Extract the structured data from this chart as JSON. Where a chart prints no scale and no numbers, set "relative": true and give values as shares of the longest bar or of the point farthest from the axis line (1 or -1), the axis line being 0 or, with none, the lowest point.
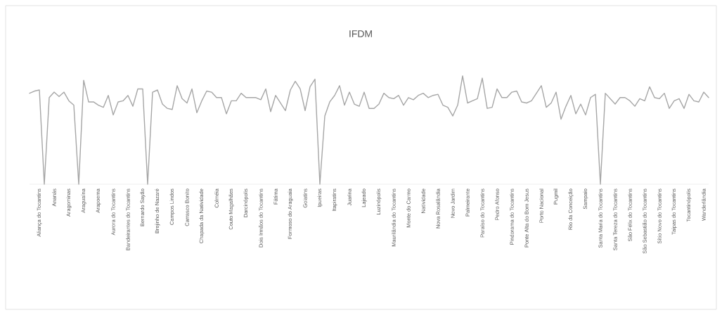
{
  "chart_data": {
    "type": "line",
    "title": "IFDM",
    "relative": true,
    "color": "#a6a6a6",
    "categories": [
      null,
      null,
      "Aliança do Tocantins",
      null,
      null,
      "Ananás",
      null,
      null,
      "Aragominas",
      null,
      null,
      "Araguaína",
      null,
      null,
      "Arapoema",
      null,
      null,
      "Aurora do Tocantins",
      null,
      null,
      "Bandeirantes do Tocantins",
      null,
      null,
      "Bernardo Sayão",
      null,
      null,
      "Brejinho de Nazaré",
      null,
      null,
      "Campos Lindos",
      null,
      null,
      "Carrasco Bonito",
      null,
      null,
      "Chapada da Natividade",
      null,
      null,
      "Colméia",
      null,
      null,
      "Couto Magalhães",
      null,
      null,
      "Darcinópolis",
      null,
      null,
      "Dois Irmãos do Tocantins",
      null,
      null,
      "Fátima",
      null,
      null,
      "Formoso do Araguaia",
      null,
      null,
      "Goiatins",
      null,
      null,
      "Ipueiras",
      null,
      null,
      "Itapiratins",
      null,
      null,
      "Juarina",
      null,
      null,
      "Lajeado",
      null,
      null,
      "Luzinópolis",
      null,
      null,
      "Maurilândia do Tocantins",
      null,
      null,
      "Monte do Carmo",
      null,
      null,
      "Natividade",
      null,
      null,
      "Nova Rosalândia",
      null,
      null,
      "Novo Jardim",
      null,
      null,
      "Palmeirante",
      null,
      null,
      "Paraíso do Tocantins",
      null,
      null,
      "Pedro Afonso",
      null,
      null,
      "Pindorama do Tocantins",
      null,
      null,
      "Ponte Alta do Bom Jesus",
      null,
      null,
      "Porto Nacional",
      null,
      null,
      "Pugmil",
      null,
      null,
      "Rio da Conceição",
      null,
      null,
      "Sampaio",
      null,
      null,
      "Santa Maria do Tocantins",
      null,
      null,
      "Santa Tereza do Tocantins",
      null,
      null,
      "São Félix do Tocantins",
      null,
      null,
      "São Sebastião do Tocantins",
      null,
      null,
      "Sítio Novo do Tocantins",
      null,
      null,
      "Taipas do Tocantins",
      null,
      null,
      "Tocantinópolis",
      null,
      null,
      "Wanderlândia",
      null
    ],
    "values": [
      0.84,
      0.86,
      0.87,
      0,
      0.8,
      0.85,
      0.81,
      0.85,
      0.77,
      0.73,
      0,
      0.96,
      0.76,
      0.76,
      0.73,
      0.71,
      0.82,
      0.64,
      0.76,
      0.77,
      0.82,
      0.72,
      0.88,
      0.88,
      0,
      0.85,
      0.87,
      0.74,
      0.7,
      0.69,
      0.91,
      0.79,
      0.75,
      0.88,
      0.66,
      0.77,
      0.86,
      0.85,
      0.8,
      0.8,
      0.65,
      0.77,
      0.77,
      0.84,
      0.8,
      0.8,
      0.8,
      0.78,
      0.88,
      0.67,
      0.82,
      0.75,
      0.68,
      0.87,
      0.95,
      0.88,
      0.68,
      0.9,
      0.97,
      0,
      0.63,
      0.76,
      0.82,
      0.91,
      0.73,
      0.85,
      0.74,
      0.72,
      0.85,
      0.7,
      0.7,
      0.74,
      0.84,
      0.8,
      0.79,
      0.82,
      0.73,
      0.8,
      0.78,
      0.82,
      0.84,
      0.8,
      0.82,
      0.83,
      0.73,
      0.71,
      0.63,
      0.73,
      1,
      0.75,
      0.77,
      0.79,
      0.98,
      0.7,
      0.71,
      0.88,
      0.8,
      0.8,
      0.85,
      0.86,
      0.76,
      0.75,
      0.77,
      0.84,
      0.91,
      0.71,
      0.75,
      0.85,
      0.6,
      0.72,
      0.82,
      0.65,
      0.74,
      0.64,
      0.8,
      0.83,
      0,
      0.84,
      0.79,
      0.74,
      0.8,
      0.8,
      0.77,
      0.72,
      0.79,
      0.77,
      0.9,
      0.8,
      0.79,
      0.84,
      0.7,
      0.77,
      0.79,
      0.7,
      0.83,
      0.77,
      0.76,
      0.85,
      0.8
    ]
  }
}
